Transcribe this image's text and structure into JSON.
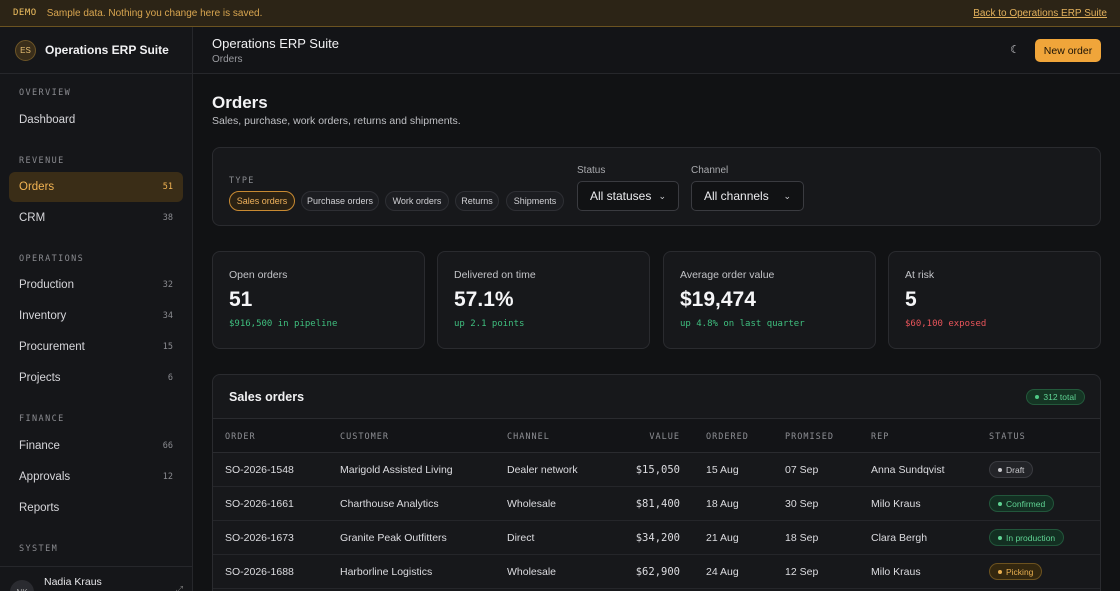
{
  "banner": {
    "tag": "DEMO",
    "text": "Sample data. Nothing you change here is saved.",
    "link": "Back to Operations ERP Suite"
  },
  "brand": {
    "initials": "ES",
    "name": "Operations ERP Suite"
  },
  "sidebar": {
    "sections": [
      {
        "title": "OVERVIEW",
        "items": [
          {
            "label": "Dashboard",
            "count": ""
          }
        ]
      },
      {
        "title": "REVENUE",
        "items": [
          {
            "label": "Orders",
            "count": "51",
            "active": true
          },
          {
            "label": "CRM",
            "count": "38"
          }
        ]
      },
      {
        "title": "OPERATIONS",
        "items": [
          {
            "label": "Production",
            "count": "32"
          },
          {
            "label": "Inventory",
            "count": "34"
          },
          {
            "label": "Procurement",
            "count": "15"
          },
          {
            "label": "Projects",
            "count": "6"
          }
        ]
      },
      {
        "title": "FINANCE",
        "items": [
          {
            "label": "Finance",
            "count": "66"
          },
          {
            "label": "Approvals",
            "count": "12"
          },
          {
            "label": "Reports",
            "count": ""
          }
        ]
      },
      {
        "title": "SYSTEM",
        "items": []
      }
    ],
    "user": {
      "initials": "NK",
      "name": "Nadia Kraus"
    }
  },
  "topbar": {
    "title": "Operations ERP Suite",
    "breadcrumb": "Orders",
    "new_order_label": "New order",
    "theme_icon": "moon-icon"
  },
  "page": {
    "title": "Orders",
    "subtitle": "Sales, purchase, work orders, returns and shipments."
  },
  "filters": {
    "type_label": "TYPE",
    "types": [
      "Sales orders",
      "Purchase orders",
      "Work orders",
      "Returns",
      "Shipments"
    ],
    "active_type": "Sales orders",
    "status_label": "Status",
    "status_value": "All statuses",
    "channel_label": "Channel",
    "channel_value": "All channels"
  },
  "kpis": [
    {
      "label": "Open orders",
      "value": "51",
      "note": "$916,500 in pipeline",
      "tone": "good"
    },
    {
      "label": "Delivered on time",
      "value": "57.1%",
      "note": "up 2.1 points",
      "tone": "good"
    },
    {
      "label": "Average order value",
      "value": "$19,474",
      "note": "up 4.8% on last quarter",
      "tone": "good"
    },
    {
      "label": "At risk",
      "value": "5",
      "note": "$60,100 exposed",
      "tone": "bad"
    }
  ],
  "table": {
    "title": "Sales orders",
    "total": "312 total",
    "columns": [
      "ORDER",
      "CUSTOMER",
      "CHANNEL",
      "VALUE",
      "ORDERED",
      "PROMISED",
      "REP",
      "STATUS"
    ],
    "rows": [
      {
        "order": "SO-2026-1548",
        "customer": "Marigold Assisted Living",
        "channel": "Dealer network",
        "value": "$15,050",
        "ordered": "15 Aug",
        "promised": "07 Sep",
        "rep": "Anna Sundqvist",
        "status": "Draft",
        "status_kind": "draft"
      },
      {
        "order": "SO-2026-1661",
        "customer": "Charthouse Analytics",
        "channel": "Wholesale",
        "value": "$81,400",
        "ordered": "18 Aug",
        "promised": "30 Sep",
        "rep": "Milo Kraus",
        "status": "Confirmed",
        "status_kind": "confirmed"
      },
      {
        "order": "SO-2026-1673",
        "customer": "Granite Peak Outfitters",
        "channel": "Direct",
        "value": "$34,200",
        "ordered": "21 Aug",
        "promised": "18 Sep",
        "rep": "Clara Bergh",
        "status": "In production",
        "status_kind": "production"
      },
      {
        "order": "SO-2026-1688",
        "customer": "Harborline Logistics",
        "channel": "Wholesale",
        "value": "$62,900",
        "ordered": "24 Aug",
        "promised": "12 Sep",
        "rep": "Milo Kraus",
        "status": "Picking",
        "status_kind": "picking"
      }
    ]
  },
  "colors": {
    "accent": "#f0a53a",
    "good": "#3fbf7f",
    "bad": "#e8545a"
  }
}
